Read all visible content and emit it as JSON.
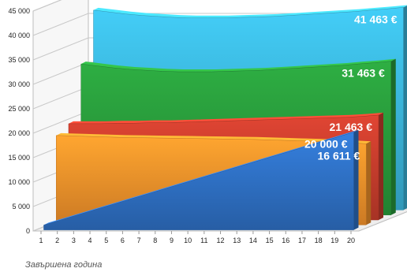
{
  "chart_data": {
    "type": "area",
    "x": [
      1,
      2,
      3,
      4,
      5,
      6,
      7,
      8,
      9,
      10,
      11,
      12,
      13,
      14,
      15,
      16,
      17,
      18,
      19,
      20
    ],
    "xlabel": "Завършена година",
    "ylabel": "",
    "ylim": [
      0,
      45000
    ],
    "yticks": [
      "0",
      "5 000",
      "10 000",
      "15 000",
      "20 000",
      "25 000",
      "30 000",
      "35 000",
      "40 000",
      "45 000"
    ],
    "grid": true,
    "legend": "none",
    "series": [
      {
        "color": "#3ab3d8",
        "values": [
          40900,
          40500,
          40100,
          39800,
          39600,
          39400,
          39300,
          39300,
          39300,
          39400,
          39500,
          39600,
          39800,
          40000,
          40200,
          40400,
          40600,
          40900,
          41150,
          41463
        ],
        "label": "41 463 €"
      },
      {
        "color": "#28983a",
        "values": [
          30900,
          30500,
          30100,
          29800,
          29600,
          29400,
          29300,
          29300,
          29300,
          29400,
          29500,
          29600,
          29800,
          30000,
          30200,
          30400,
          30600,
          30900,
          31150,
          31463
        ],
        "label": "31 463 €"
      },
      {
        "color": "#c43c2c",
        "values": [
          19700,
          19700,
          19700,
          19800,
          19800,
          19900,
          19900,
          20000,
          20100,
          20200,
          20300,
          20400,
          20500,
          20600,
          20700,
          20800,
          20900,
          21000,
          21200,
          21463
        ],
        "label": "21 463 €"
      },
      {
        "color": "#f0902a",
        "values": [
          18300,
          18200,
          18100,
          18000,
          17900,
          17850,
          17800,
          17750,
          17700,
          17650,
          17600,
          17550,
          17500,
          17400,
          17300,
          17200,
          17100,
          16950,
          16800,
          16611
        ],
        "label": "16 611 €"
      },
      {
        "color": "#2e6fc2",
        "values": [
          1000,
          2000,
          3000,
          4000,
          5000,
          6000,
          7000,
          8000,
          9000,
          10000,
          11000,
          12000,
          13000,
          14000,
          15000,
          16000,
          17000,
          18000,
          19000,
          20000
        ],
        "label": "20 000 €"
      }
    ]
  }
}
